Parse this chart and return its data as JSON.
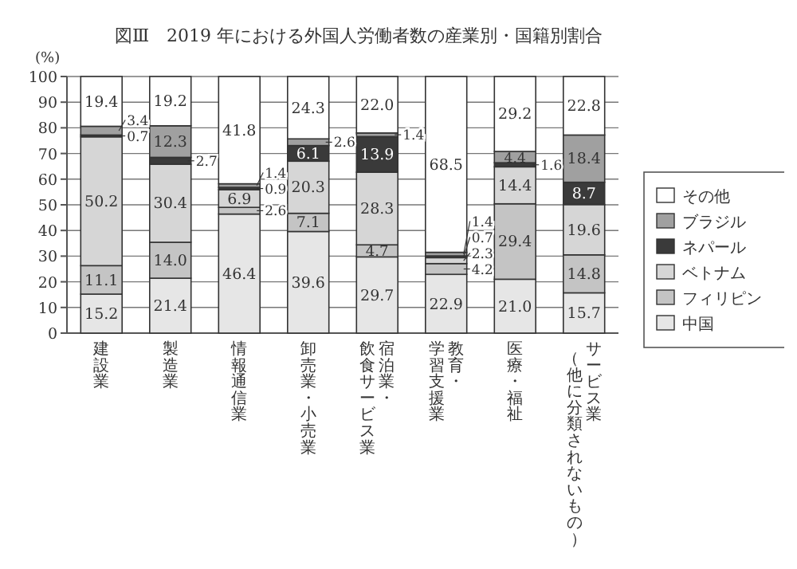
{
  "chart_data": {
    "type": "bar",
    "title": "図Ⅲ　2019 年における外国人労働者数の産業別・国籍別割合",
    "ylabel": "(%)",
    "stacked": true,
    "grid": "y",
    "legend": "right",
    "ylim": [
      0,
      100
    ],
    "yticks": [
      0,
      10,
      20,
      30,
      40,
      50,
      60,
      70,
      80,
      90,
      100
    ],
    "categories": [
      "建設業",
      "製造業",
      "情報通信業",
      "卸売業・小売業",
      "宿泊業・飲食サービス業",
      "教育・学習支援業",
      "医療・福祉",
      "サービス業（他に分類されないもの）"
    ],
    "series": [
      {
        "name": "中国",
        "color": "#e6e6e6",
        "values": [
          15.2,
          21.4,
          46.4,
          39.6,
          29.7,
          22.9,
          21.0,
          15.7
        ],
        "value_labels": [
          "15.2",
          "21.4",
          "46.4",
          "39.6",
          "29.7",
          "22.9",
          "21.0",
          "15.7"
        ]
      },
      {
        "name": "フィリピン",
        "color": "#c4c4c4",
        "values": [
          11.1,
          14.0,
          2.6,
          7.1,
          4.7,
          4.2,
          29.4,
          14.8
        ],
        "value_labels": [
          "11.1",
          "14.0",
          "2.6",
          "7.1",
          "4.7",
          "4.2",
          "29.4",
          "14.8"
        ]
      },
      {
        "name": "ベトナム",
        "color": "#d6d6d6",
        "values": [
          50.2,
          30.4,
          6.9,
          20.3,
          28.3,
          2.3,
          14.4,
          19.6
        ],
        "value_labels": [
          "50.2",
          "30.4",
          "6.9",
          "20.3",
          "28.3",
          "2.3",
          "14.4",
          "19.6"
        ]
      },
      {
        "name": "ネパール",
        "color": "#3a3a3a",
        "values": [
          0.7,
          2.7,
          0.9,
          6.1,
          13.9,
          0.7,
          1.6,
          8.7
        ],
        "value_labels": [
          "0.7",
          "2.7",
          "0.9",
          "6.1",
          "13.9",
          "0.7",
          "1.6",
          "8.7"
        ]
      },
      {
        "name": "ブラジル",
        "color": "#a0a0a0",
        "values": [
          3.4,
          12.3,
          1.4,
          2.6,
          1.4,
          1.4,
          4.4,
          18.4
        ],
        "value_labels": [
          "3.4",
          "12.3",
          "1.4",
          "2.6",
          "1.4",
          "1.4",
          "4.4",
          "18.4"
        ]
      },
      {
        "name": "その他",
        "color": "#ffffff",
        "values": [
          19.4,
          19.2,
          41.8,
          24.3,
          22.0,
          68.5,
          29.2,
          22.8
        ],
        "value_labels": [
          "19.4",
          "19.2",
          "41.8",
          "24.3",
          "22.0",
          "68.5",
          "29.2",
          "22.8"
        ]
      }
    ]
  }
}
